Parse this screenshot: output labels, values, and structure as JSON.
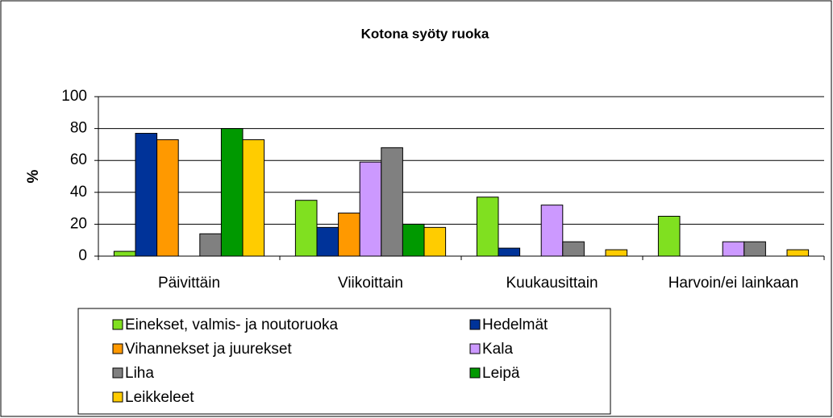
{
  "chart_data": {
    "type": "bar",
    "title": "Kotona syöty ruoka",
    "y_label": "%",
    "categories": [
      "Päivittäin",
      "Viikoittain",
      "Kuukausittain",
      "Harvoin/ei lainkaan"
    ],
    "series": [
      {
        "name": "Einekset, valmis- ja noutoruoka",
        "color": "#80e020",
        "values": [
          3,
          35,
          37,
          25
        ]
      },
      {
        "name": "Hedelmät",
        "color": "#003399",
        "values": [
          77,
          18,
          5,
          0
        ]
      },
      {
        "name": "Vihannekset ja juurekset",
        "color": "#ff9900",
        "values": [
          73,
          27,
          0,
          0
        ]
      },
      {
        "name": "Kala",
        "color": "#cc99ff",
        "values": [
          0,
          59,
          32,
          9
        ]
      },
      {
        "name": "Liha",
        "color": "#808080",
        "values": [
          14,
          68,
          9,
          9
        ]
      },
      {
        "name": "Leipä",
        "color": "#009900",
        "values": [
          80,
          20,
          0,
          0
        ]
      },
      {
        "name": "Leikkeleet",
        "color": "#ffcc00",
        "values": [
          73,
          18,
          4,
          4
        ]
      }
    ],
    "ylim": [
      0,
      100
    ],
    "yticks": [
      0,
      20,
      40,
      60,
      80,
      100
    ],
    "grid": true,
    "legend": "bottom"
  }
}
